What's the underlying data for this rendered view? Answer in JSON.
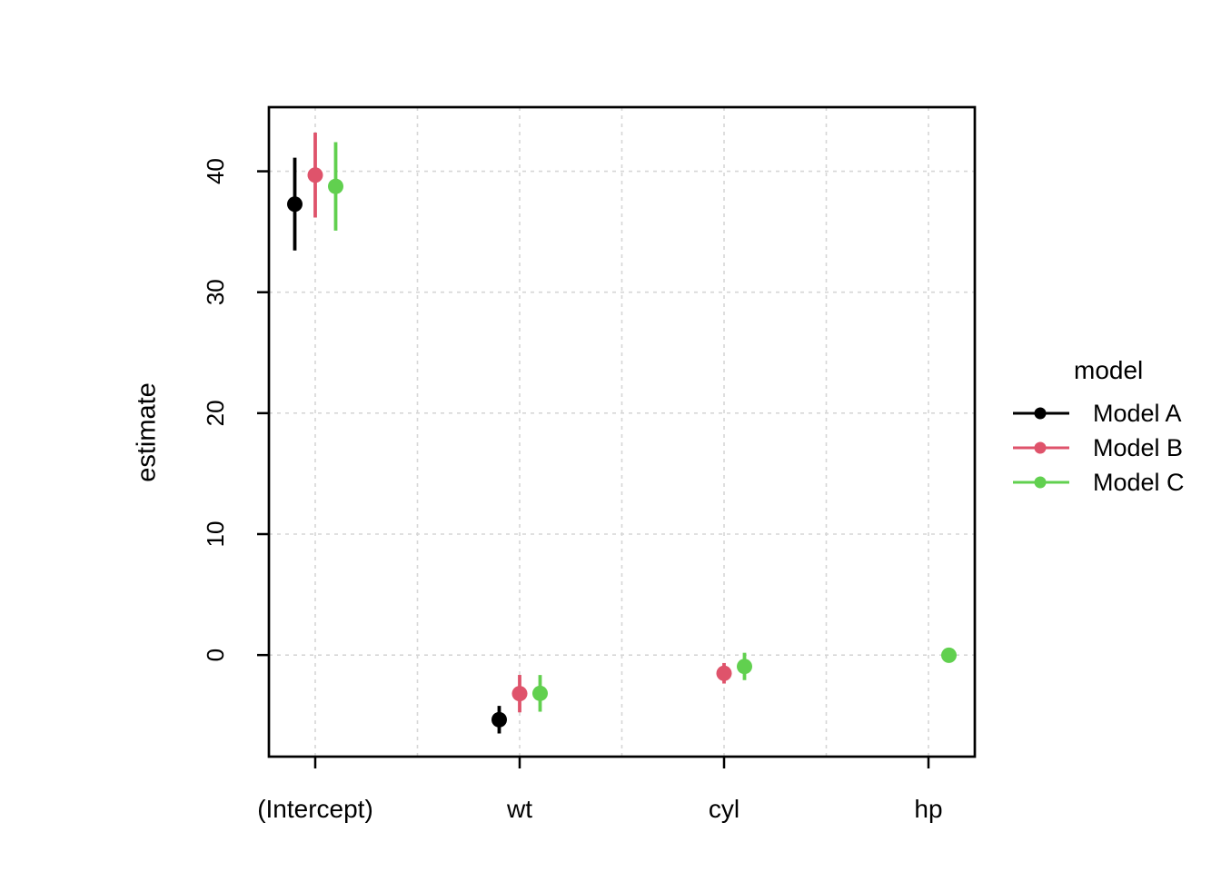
{
  "chart_data": {
    "type": "pointrange",
    "title": "",
    "xlabel": "term",
    "ylabel": "estimate",
    "x_categories": [
      "(Intercept)",
      "wt",
      "cyl",
      "hp"
    ],
    "y_ticks": [
      0,
      10,
      20,
      30,
      40
    ],
    "ylim": [
      -8.4,
      45.3
    ],
    "grid": {
      "style": "dashed",
      "color": "#d6d6d6",
      "minor_between_categories": true
    },
    "legend": {
      "title": "model",
      "position": "right"
    },
    "series": [
      {
        "name": "Model A",
        "color": "#000000",
        "points": [
          {
            "term": "(Intercept)",
            "estimate": 37.285,
            "conf_low": 33.45,
            "conf_high": 41.12
          },
          {
            "term": "wt",
            "estimate": -5.344,
            "conf_low": -6.486,
            "conf_high": -4.203
          }
        ]
      },
      {
        "name": "Model B",
        "color": "#DF536B",
        "points": [
          {
            "term": "(Intercept)",
            "estimate": 39.686,
            "conf_low": 36.179,
            "conf_high": 43.194
          },
          {
            "term": "wt",
            "estimate": -3.191,
            "conf_low": -4.739,
            "conf_high": -1.643
          },
          {
            "term": "cyl",
            "estimate": -1.508,
            "conf_low": -2.356,
            "conf_high": -0.66
          }
        ]
      },
      {
        "name": "Model C",
        "color": "#61D04F",
        "points": [
          {
            "term": "(Intercept)",
            "estimate": 38.752,
            "conf_low": 35.092,
            "conf_high": 42.412
          },
          {
            "term": "wt",
            "estimate": -3.167,
            "conf_low": -4.684,
            "conf_high": -1.65
          },
          {
            "term": "cyl",
            "estimate": -0.942,
            "conf_low": -2.071,
            "conf_high": 0.187
          },
          {
            "term": "hp",
            "estimate": -0.018,
            "conf_low": -0.042,
            "conf_high": 0.006
          }
        ]
      }
    ]
  }
}
